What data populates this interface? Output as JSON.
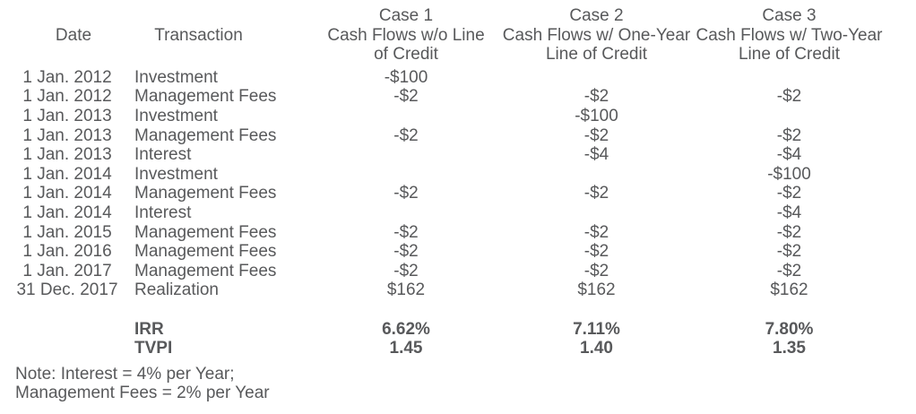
{
  "colors": {
    "text": "#58595B",
    "background": "#FFFFFF"
  },
  "table": {
    "headers": {
      "date": "Date",
      "transaction": "Transaction"
    },
    "cases": [
      {
        "title": "Case 1",
        "subtitle_line1": "Cash Flows w/o Line",
        "subtitle_line2": "of Credit"
      },
      {
        "title": "Case 2",
        "subtitle_line1": "Cash Flows w/ One-Year",
        "subtitle_line2": "Line of Credit"
      },
      {
        "title": "Case 3",
        "subtitle_line1": "Cash Flows w/ Two-Year",
        "subtitle_line2": "Line of Credit"
      }
    ],
    "rows": [
      {
        "date": "1 Jan. 2012",
        "transaction": "Investment",
        "case1": "-$100",
        "case2": "",
        "case3": ""
      },
      {
        "date": "1 Jan. 2012",
        "transaction": "Management Fees",
        "case1": "-$2",
        "case2": "-$2",
        "case3": "-$2"
      },
      {
        "date": "1 Jan. 2013",
        "transaction": "Investment",
        "case1": "",
        "case2": "-$100",
        "case3": ""
      },
      {
        "date": "1 Jan. 2013",
        "transaction": "Management Fees",
        "case1": "-$2",
        "case2": "-$2",
        "case3": "-$2"
      },
      {
        "date": "1 Jan. 2013",
        "transaction": "Interest",
        "case1": "",
        "case2": "-$4",
        "case3": "-$4"
      },
      {
        "date": "1 Jan. 2014",
        "transaction": "Investment",
        "case1": "",
        "case2": "",
        "case3": "-$100"
      },
      {
        "date": "1 Jan. 2014",
        "transaction": "Management Fees",
        "case1": "-$2",
        "case2": "-$2",
        "case3": "-$2"
      },
      {
        "date": "1 Jan. 2014",
        "transaction": "Interest",
        "case1": "",
        "case2": "",
        "case3": "-$4"
      },
      {
        "date": "1 Jan. 2015",
        "transaction": "Management Fees",
        "case1": "-$2",
        "case2": "-$2",
        "case3": "-$2"
      },
      {
        "date": "1 Jan. 2016",
        "transaction": "Management Fees",
        "case1": "-$2",
        "case2": "-$2",
        "case3": "-$2"
      },
      {
        "date": "1 Jan. 2017",
        "transaction": "Management Fees",
        "case1": "-$2",
        "case2": "-$2",
        "case3": "-$2"
      },
      {
        "date": "31 Dec. 2017",
        "transaction": "Realization",
        "case1": "$162",
        "case2": "$162",
        "case3": "$162"
      }
    ],
    "summary": [
      {
        "label": "IRR",
        "case1": "6.62%",
        "case2": "7.11%",
        "case3": "7.80%"
      },
      {
        "label": "TVPI",
        "case1": "1.45",
        "case2": "1.40",
        "case3": "1.35"
      }
    ]
  },
  "note": {
    "line1": "Note: Interest = 4% per Year;",
    "line2": "Management Fees = 2% per Year"
  }
}
